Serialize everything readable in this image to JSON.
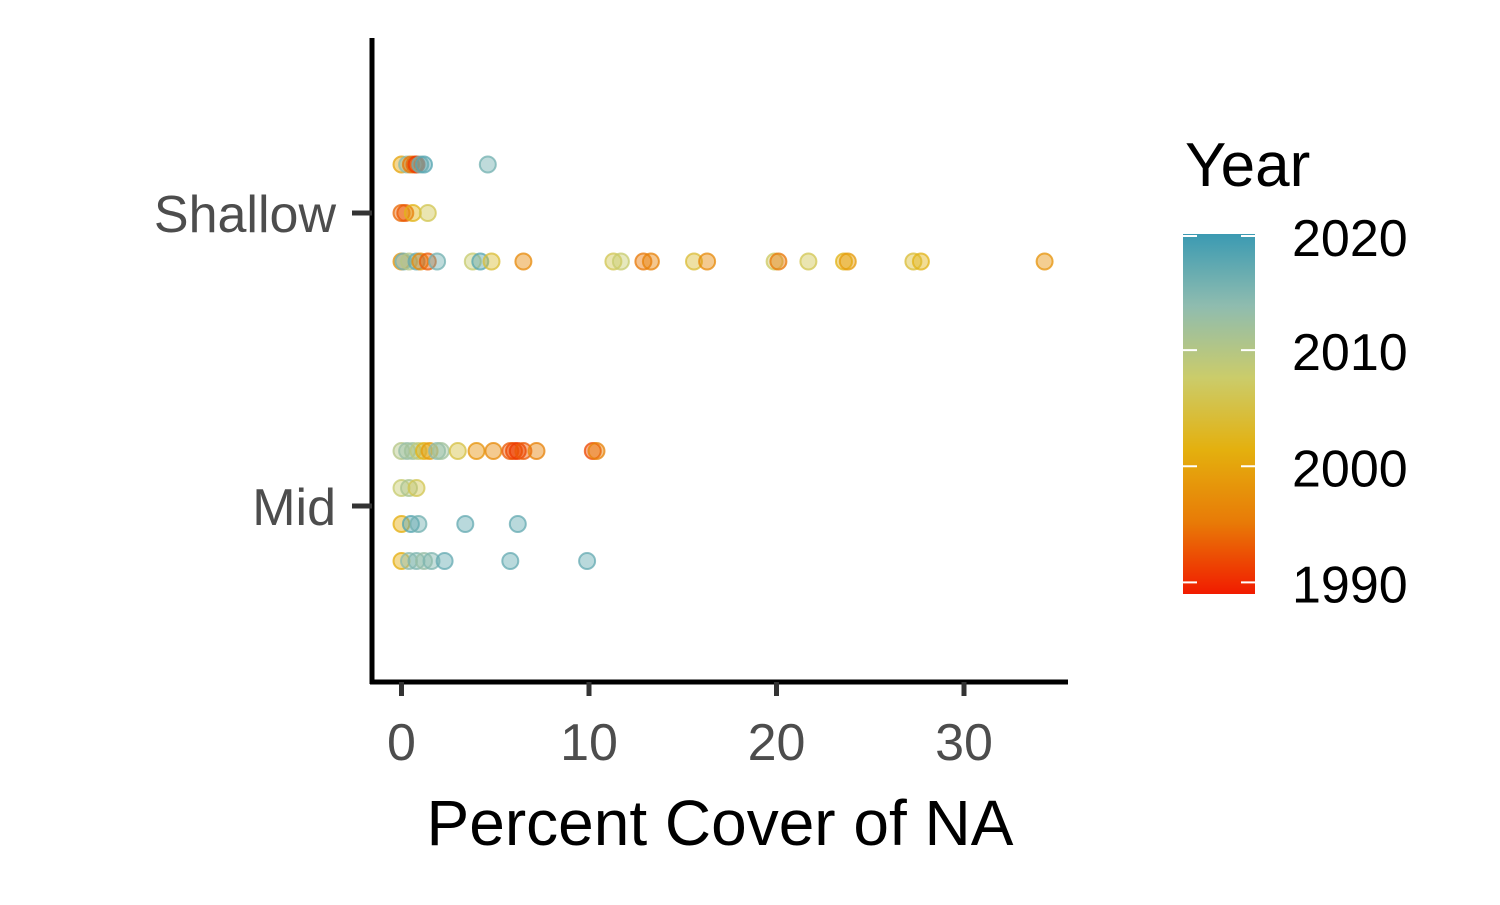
{
  "chart_data": {
    "type": "scatter",
    "title": "",
    "xlabel": "Percent Cover of NA",
    "ylabel": "",
    "xlim": [
      -1.6,
      35.8
    ],
    "xticks": [
      0,
      10,
      20,
      30
    ],
    "y_categories": [
      "Shallow",
      "Mid"
    ],
    "grid": false,
    "point_alpha": 0.45,
    "legend": {
      "title": "Year",
      "placement": "right",
      "min": 1989,
      "max": 2020,
      "ticks": [
        1990,
        2000,
        2010,
        2020
      ],
      "colors": [
        "#f11b00",
        "#e87b07",
        "#e4b00e",
        "#cbcc6a",
        "#8fbcaf",
        "#3b9ab2"
      ]
    },
    "series": [
      {
        "category": "Shallow",
        "offset": 1,
        "points": [
          [
            0,
            2000
          ],
          [
            0.3,
            2014
          ],
          [
            0.5,
            1995
          ],
          [
            0.7,
            1994
          ],
          [
            0.8,
            1991
          ],
          [
            1.0,
            2016
          ],
          [
            1.2,
            2018
          ],
          [
            4.6,
            2016
          ]
        ]
      },
      {
        "category": "Shallow",
        "offset": 0,
        "points": [
          [
            0,
            1994
          ],
          [
            0.2,
            1993
          ],
          [
            0.6,
            2002
          ],
          [
            1.4,
            2006
          ]
        ]
      },
      {
        "category": "Shallow",
        "offset": -1,
        "points": [
          [
            0,
            1998
          ],
          [
            0.1,
            2016
          ],
          [
            0.4,
            2010
          ],
          [
            0.8,
            2017
          ],
          [
            1.0,
            1997
          ],
          [
            1.4,
            1993
          ],
          [
            1.9,
            2016
          ],
          [
            3.8,
            2008
          ],
          [
            4.2,
            2018
          ],
          [
            4.8,
            2004
          ],
          [
            6.5,
            1997
          ],
          [
            11.3,
            2006
          ],
          [
            11.7,
            2008
          ],
          [
            12.9,
            1995
          ],
          [
            13.3,
            1996
          ],
          [
            15.6,
            2004
          ],
          [
            16.3,
            1997
          ],
          [
            19.9,
            2007
          ],
          [
            20.1,
            1995
          ],
          [
            21.7,
            2006
          ],
          [
            23.6,
            2002
          ],
          [
            23.8,
            1999
          ],
          [
            27.3,
            2004
          ],
          [
            27.7,
            2002
          ],
          [
            34.3,
            1998
          ]
        ]
      },
      {
        "category": "Mid",
        "offset": 1,
        "points": [
          [
            0,
            2010
          ],
          [
            0.3,
            2013
          ],
          [
            0.6,
            2012
          ],
          [
            0.9,
            2009
          ],
          [
            1.2,
            2002
          ],
          [
            1.5,
            1999
          ],
          [
            1.9,
            2014
          ],
          [
            2.1,
            2012
          ],
          [
            3.0,
            2005
          ],
          [
            4.0,
            1998
          ],
          [
            4.9,
            1997
          ],
          [
            5.8,
            1993
          ],
          [
            6.0,
            1992
          ],
          [
            6.2,
            1991
          ],
          [
            6.5,
            1993
          ],
          [
            7.2,
            1996
          ],
          [
            10.2,
            1992
          ],
          [
            10.4,
            1996
          ]
        ]
      },
      {
        "category": "Mid",
        "offset": 0,
        "points": [
          [
            0,
            2008
          ],
          [
            0.4,
            2011
          ],
          [
            0.8,
            2006
          ]
        ]
      },
      {
        "category": "Mid",
        "offset": -1,
        "points": [
          [
            0,
            2001
          ],
          [
            0.5,
            2018
          ],
          [
            0.9,
            2016
          ],
          [
            3.4,
            2017
          ],
          [
            6.2,
            2017
          ]
        ]
      },
      {
        "category": "Mid",
        "offset": -2,
        "points": [
          [
            0,
            2001
          ],
          [
            0.4,
            2014
          ],
          [
            0.8,
            2015
          ],
          [
            1.2,
            2013
          ],
          [
            1.6,
            2015
          ],
          [
            2.3,
            2017
          ],
          [
            5.8,
            2017
          ],
          [
            9.9,
            2017
          ]
        ]
      }
    ]
  }
}
